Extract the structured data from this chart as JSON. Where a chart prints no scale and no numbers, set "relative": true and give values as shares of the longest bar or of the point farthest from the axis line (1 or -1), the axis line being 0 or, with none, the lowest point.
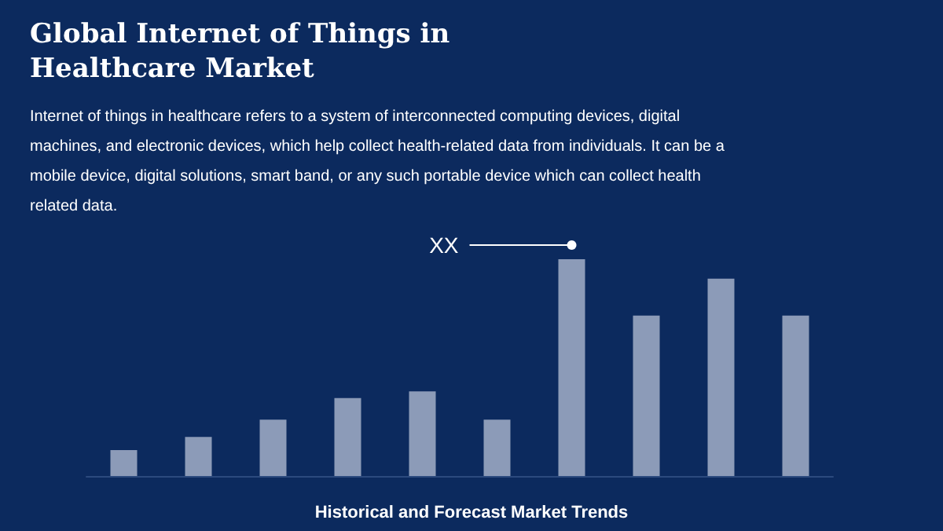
{
  "chart_data": {
    "type": "bar",
    "title": "Global Internet of Things in Healthcare Market",
    "subtitle": "Internet of things in healthcare refers to a system of interconnected computing devices, digital machines, and electronic devices, which help collect health-related data from individuals. It can be a mobile device, digital solutions, smart band, or any such portable device which can collect health related data.",
    "categories": [
      null,
      null,
      null,
      null,
      null,
      null,
      null,
      null,
      null,
      null
    ],
    "values": [
      0.12,
      0.18,
      0.26,
      0.36,
      0.39,
      0.26,
      1,
      0.74,
      0.91,
      0.74
    ],
    "color": "#a3afc8",
    "relative": true,
    "grid": false,
    "annotations": [
      "XX",
      "Historical and Forecast Market Trends"
    ]
  }
}
